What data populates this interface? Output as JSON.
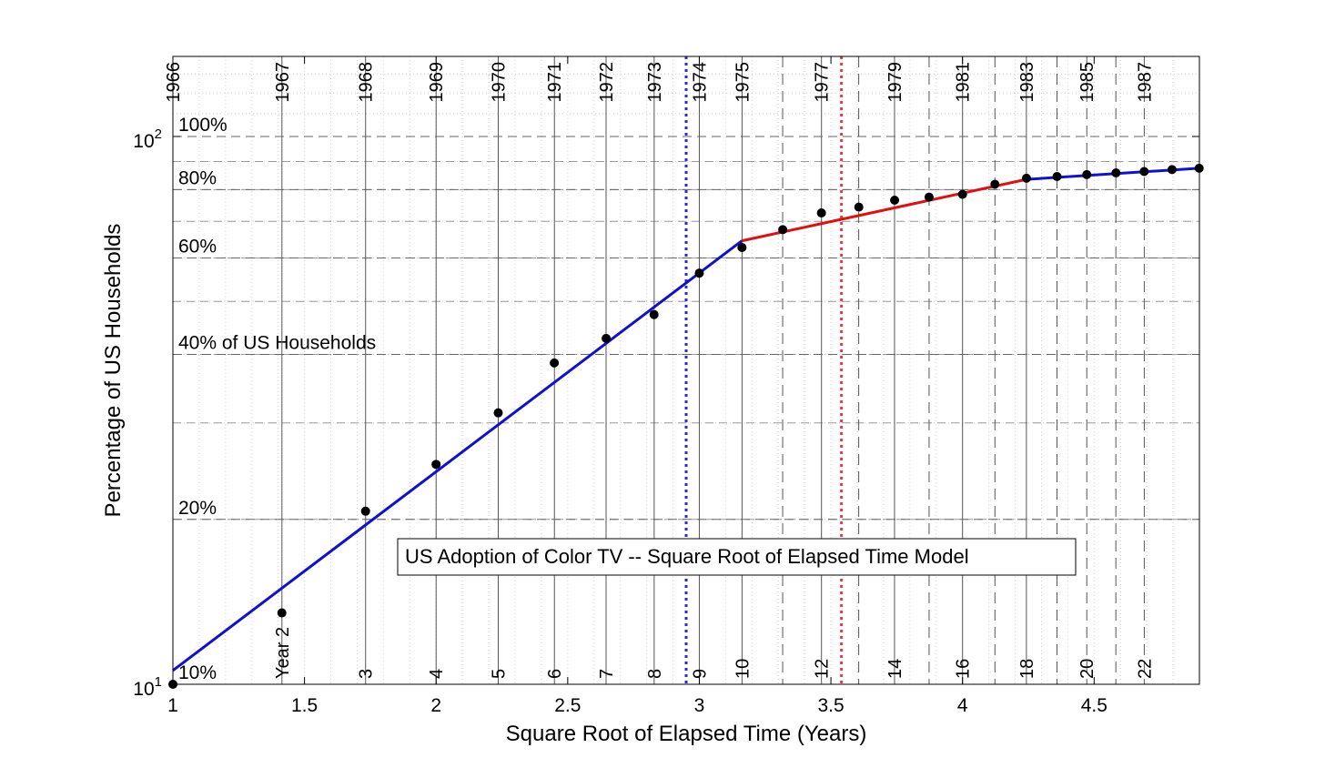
{
  "chart_data": {
    "type": "line",
    "title": "US Adoption of Color TV -- Square Root of Elapsed Time Model",
    "xlabel": "Square Root of Elapsed Time (Years)",
    "ylabel": "Percentage of US Households",
    "xlim": [
      1,
      4.9
    ],
    "ylim": [
      10,
      140
    ],
    "yscale": "log",
    "x_ticks": [
      {
        "v": 1,
        "label": "1"
      },
      {
        "v": 1.5,
        "label": "1.5"
      },
      {
        "v": 2,
        "label": "2"
      },
      {
        "v": 2.5,
        "label": "2.5"
      },
      {
        "v": 3,
        "label": "3"
      },
      {
        "v": 3.5,
        "label": "3.5"
      },
      {
        "v": 4,
        "label": "4"
      },
      {
        "v": 4.5,
        "label": "4.5"
      }
    ],
    "y_ticks": [
      {
        "v": 10,
        "base": "10",
        "exp": "1"
      },
      {
        "v": 100,
        "base": "10",
        "exp": "2"
      }
    ],
    "grid": true,
    "percent_lines": [
      {
        "v": 100,
        "label": "100%"
      },
      {
        "v": 80,
        "label": "80%"
      },
      {
        "v": 60,
        "label": "60%"
      },
      {
        "v": 40,
        "label": "40% of US Households"
      },
      {
        "v": 20,
        "label": "20%"
      },
      {
        "v": 10,
        "label": "10%"
      }
    ],
    "year_lines": [
      {
        "years": 1,
        "top": "1966",
        "bottom": "",
        "style": "solid"
      },
      {
        "years": 2,
        "top": "1967",
        "bottom": "Year 2",
        "style": "solid"
      },
      {
        "years": 3,
        "top": "1968",
        "bottom": "3",
        "style": "solid"
      },
      {
        "years": 4,
        "top": "1969",
        "bottom": "4",
        "style": "solid"
      },
      {
        "years": 5,
        "top": "1970",
        "bottom": "5",
        "style": "solid"
      },
      {
        "years": 6,
        "top": "1971",
        "bottom": "6",
        "style": "solid"
      },
      {
        "years": 7,
        "top": "1972",
        "bottom": "7",
        "style": "solid"
      },
      {
        "years": 8,
        "top": "1973",
        "bottom": "8",
        "style": "solid"
      },
      {
        "years": 9,
        "top": "1974",
        "bottom": "9",
        "style": "solid"
      },
      {
        "years": 10,
        "top": "1975",
        "bottom": "10",
        "style": "solid"
      },
      {
        "years": 11,
        "top": "",
        "bottom": "",
        "style": "dashed"
      },
      {
        "years": 12,
        "top": "1977",
        "bottom": "12",
        "style": "solid"
      },
      {
        "years": 13,
        "top": "",
        "bottom": "",
        "style": "dashed"
      },
      {
        "years": 14,
        "top": "1979",
        "bottom": "14",
        "style": "solid"
      },
      {
        "years": 15,
        "top": "",
        "bottom": "",
        "style": "dashed"
      },
      {
        "years": 16,
        "top": "1981",
        "bottom": "16",
        "style": "solid"
      },
      {
        "years": 17,
        "top": "",
        "bottom": "",
        "style": "dashed"
      },
      {
        "years": 18,
        "top": "1983",
        "bottom": "18",
        "style": "solid"
      },
      {
        "years": 19,
        "top": "",
        "bottom": "",
        "style": "dashed"
      },
      {
        "years": 20,
        "top": "1985",
        "bottom": "20",
        "style": "dashed"
      },
      {
        "years": 21,
        "top": "",
        "bottom": "",
        "style": "dashed"
      },
      {
        "years": 22,
        "top": "1987",
        "bottom": "22",
        "style": "dashed"
      }
    ],
    "markers": [
      {
        "x": 2.95,
        "color": "#2a2ae0",
        "style": "dotted"
      },
      {
        "x": 3.54,
        "color": "#e83a3a",
        "style": "dotted"
      }
    ],
    "series": [
      {
        "style": "markers",
        "color": "#000000",
        "points": [
          [
            1.0,
            10.0
          ],
          [
            1.414,
            13.5
          ],
          [
            1.732,
            20.7
          ],
          [
            2.0,
            25.2
          ],
          [
            2.236,
            31.3
          ],
          [
            2.449,
            38.6
          ],
          [
            2.646,
            42.8
          ],
          [
            2.828,
            47.3
          ],
          [
            3.0,
            56.3
          ],
          [
            3.162,
            62.7
          ],
          [
            3.317,
            67.6
          ],
          [
            3.464,
            72.5
          ],
          [
            3.606,
            74.3
          ],
          [
            3.742,
            76.5
          ],
          [
            3.873,
            77.5
          ],
          [
            4.0,
            78.4
          ],
          [
            4.123,
            81.8
          ],
          [
            4.243,
            83.9
          ],
          [
            4.359,
            84.5
          ],
          [
            4.472,
            85.2
          ],
          [
            4.583,
            85.8
          ],
          [
            4.69,
            86.3
          ],
          [
            4.796,
            87.0
          ],
          [
            4.899,
            87.5
          ]
        ]
      },
      {
        "style": "line",
        "color": "#1010d0",
        "points": [
          [
            1.0,
            10.6
          ],
          [
            3.162,
            64.5
          ]
        ]
      },
      {
        "style": "line",
        "color": "#e01010",
        "points": [
          [
            3.162,
            64.5
          ],
          [
            4.243,
            83.5
          ]
        ]
      },
      {
        "style": "line",
        "color": "#1010d0",
        "points": [
          [
            4.243,
            83.5
          ],
          [
            4.899,
            87.5
          ]
        ]
      }
    ]
  }
}
